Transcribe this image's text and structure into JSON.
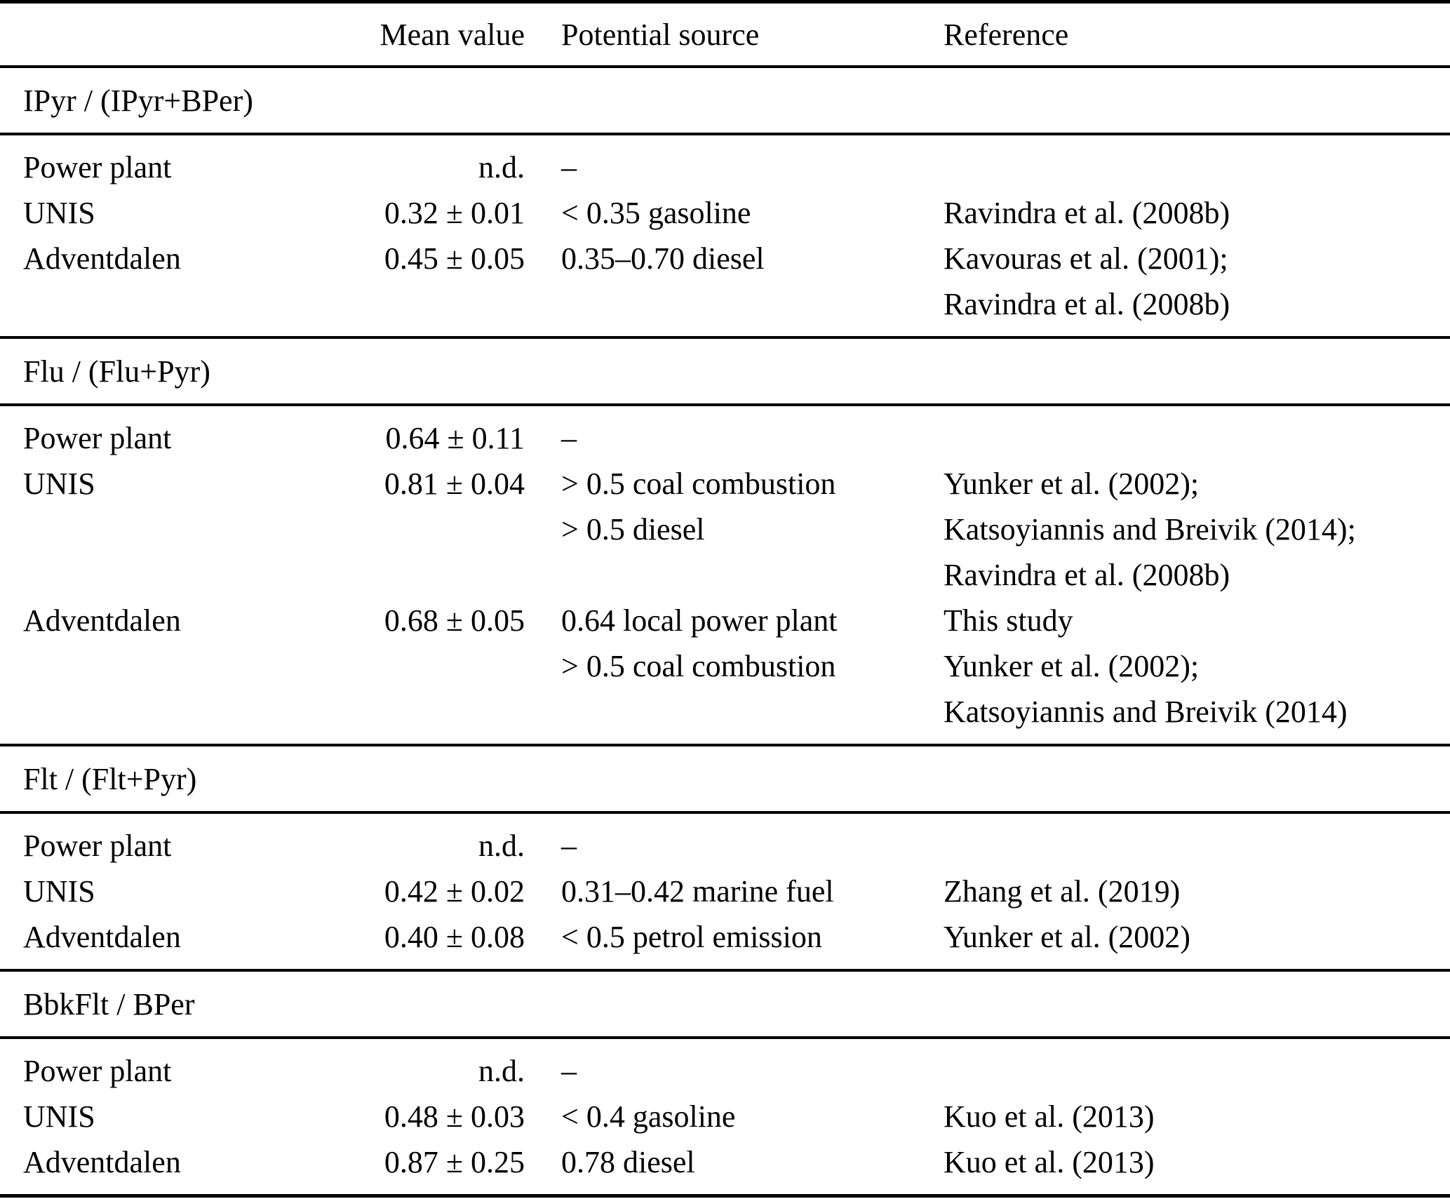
{
  "table": {
    "columns": [
      "",
      "Mean value",
      "Potential source",
      "Reference"
    ],
    "sections": [
      {
        "heading": "IPyr / (IPyr+BPer)",
        "rows": [
          {
            "label": "Power plant",
            "mean": "n.d.",
            "source_lines": [
              "–"
            ],
            "ref_lines": []
          },
          {
            "label": "UNIS",
            "mean": "0.32 ± 0.01",
            "source_lines": [
              "< 0.35 gasoline"
            ],
            "ref_lines": [
              "Ravindra et al. (2008b)"
            ]
          },
          {
            "label": "Adventdalen",
            "mean": "0.45 ± 0.05",
            "source_lines": [
              "0.35–0.70 diesel"
            ],
            "ref_lines": [
              "Kavouras et al. (2001);",
              "Ravindra et al. (2008b)"
            ]
          }
        ]
      },
      {
        "heading": "Flu / (Flu+Pyr)",
        "rows": [
          {
            "label": "Power plant",
            "mean": "0.64 ± 0.11",
            "source_lines": [
              "–"
            ],
            "ref_lines": []
          },
          {
            "label": "UNIS",
            "mean": "0.81 ± 0.04",
            "source_lines": [
              "> 0.5 coal combustion",
              "> 0.5 diesel"
            ],
            "ref_lines": [
              "Yunker et al. (2002);",
              "Katsoyiannis and Breivik (2014);",
              "Ravindra et al. (2008b)"
            ]
          },
          {
            "label": "Adventdalen",
            "mean": "0.68 ± 0.05",
            "source_lines": [
              "0.64 local power plant",
              "> 0.5 coal combustion"
            ],
            "ref_lines": [
              "This study",
              "Yunker et al. (2002);",
              "Katsoyiannis and Breivik (2014)"
            ]
          }
        ]
      },
      {
        "heading": "Flt / (Flt+Pyr)",
        "rows": [
          {
            "label": "Power plant",
            "mean": "n.d.",
            "source_lines": [
              "–"
            ],
            "ref_lines": []
          },
          {
            "label": "UNIS",
            "mean": "0.42 ± 0.02",
            "source_lines": [
              "0.31–0.42 marine fuel"
            ],
            "ref_lines": [
              "Zhang et al. (2019)"
            ]
          },
          {
            "label": "Adventdalen",
            "mean": "0.40 ± 0.08",
            "source_lines": [
              "< 0.5 petrol emission"
            ],
            "ref_lines": [
              "Yunker et al. (2002)"
            ]
          }
        ]
      },
      {
        "heading": "BbkFlt / BPer",
        "rows": [
          {
            "label": "Power plant",
            "mean": "n.d.",
            "source_lines": [
              "–"
            ],
            "ref_lines": []
          },
          {
            "label": "UNIS",
            "mean": "0.48 ± 0.03",
            "source_lines": [
              "< 0.4 gasoline"
            ],
            "ref_lines": [
              "Kuo et al. (2013)"
            ]
          },
          {
            "label": "Adventdalen",
            "mean": "0.87 ± 0.25",
            "source_lines": [
              "0.78 diesel"
            ],
            "ref_lines": [
              "Kuo et al. (2013)"
            ]
          }
        ]
      }
    ]
  }
}
